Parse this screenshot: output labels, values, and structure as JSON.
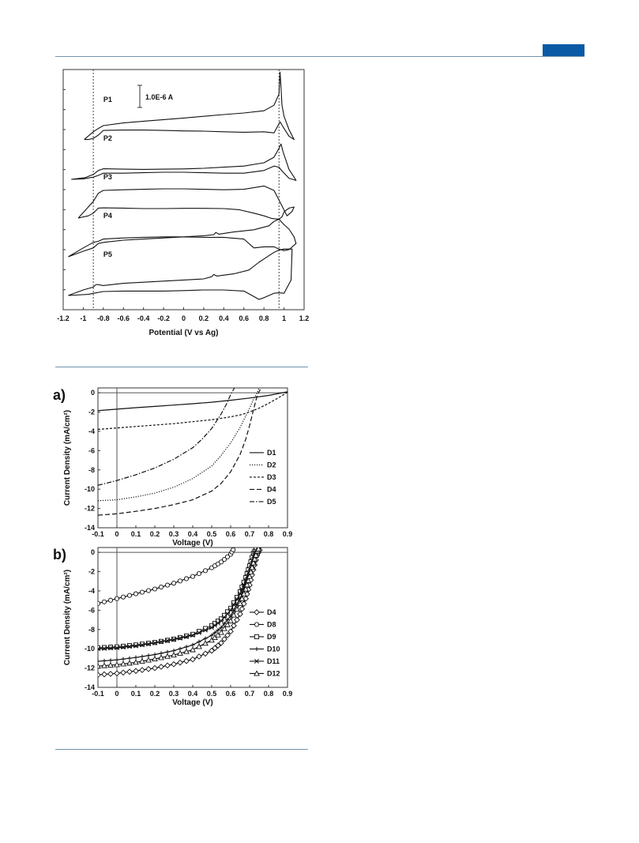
{
  "page": {
    "accent_color": "#0b5aa6",
    "rule_color": "#6f93ad"
  },
  "chart_data": [
    {
      "type": "line",
      "subtype": "cyclic-voltammogram",
      "title": "",
      "xlabel": "Potential (V vs Ag)",
      "ylabel": "",
      "xlim": [
        -1.2,
        1.2
      ],
      "xticks": [
        "-1.2",
        "-1",
        "-0.8",
        "-0.6",
        "-0.4",
        "-0.2",
        "0",
        "0.2",
        "0.4",
        "0.6",
        "0.8",
        "1",
        "1.2"
      ],
      "scale_bar_label": "1.0E-6 A",
      "reference_lines_x": [
        -0.9,
        0.95
      ],
      "grid": false,
      "series": [
        {
          "name": "P1",
          "offset": 4,
          "x": [
            -0.99,
            -0.9,
            -0.85,
            -0.8,
            -0.6,
            -0.4,
            -0.2,
            0,
            0.2,
            0.4,
            0.6,
            0.8,
            0.9,
            0.95,
            0.96,
            0.97,
            0.98,
            1.0,
            1.05,
            1.1,
            1.05,
            1.0,
            0.96,
            0.93,
            0.9,
            0.8,
            0.6,
            0.4,
            0.2,
            0,
            -0.2,
            -0.4,
            -0.6,
            -0.8,
            -0.85,
            -0.9,
            -0.95,
            -0.99
          ],
          "y": [
            0.55,
            0.9,
            1.05,
            1.18,
            1.3,
            1.38,
            1.45,
            1.52,
            1.6,
            1.68,
            1.75,
            1.85,
            2.1,
            2.6,
            3.6,
            2.9,
            2.1,
            1.6,
            1.0,
            0.55,
            0.7,
            1.05,
            1.35,
            1.1,
            0.85,
            0.9,
            0.88,
            0.9,
            0.93,
            0.94,
            0.96,
            0.98,
            0.98,
            0.96,
            0.75,
            0.6,
            0.55,
            0.55
          ]
        },
        {
          "name": "P2",
          "offset": 3,
          "x": [
            -1.12,
            -0.98,
            -0.9,
            -0.85,
            -0.8,
            -0.6,
            -0.4,
            -0.2,
            0,
            0.2,
            0.4,
            0.6,
            0.8,
            0.9,
            0.95,
            0.97,
            0.99,
            1.02,
            1.05,
            1.1,
            1.12,
            1.05,
            0.98,
            0.95,
            0.9,
            0.8,
            0.6,
            0.4,
            0.2,
            0,
            -0.2,
            -0.4,
            -0.6,
            -0.8,
            -0.85,
            -0.9,
            -1.0,
            -1.12
          ],
          "y": [
            0.5,
            0.58,
            0.72,
            0.9,
            0.98,
            0.96,
            0.95,
            0.96,
            0.97,
            1.0,
            1.05,
            1.1,
            1.25,
            1.5,
            1.9,
            2.1,
            1.75,
            1.35,
            0.95,
            0.6,
            0.45,
            0.55,
            0.88,
            1.05,
            1.1,
            0.9,
            0.78,
            0.78,
            0.8,
            0.82,
            0.82,
            0.8,
            0.78,
            0.78,
            0.68,
            0.6,
            0.52,
            0.5
          ]
        },
        {
          "name": "P3",
          "offset": 2,
          "x": [
            -1.05,
            -0.95,
            -0.9,
            -0.85,
            -0.8,
            -0.6,
            -0.4,
            -0.2,
            0,
            0.2,
            0.4,
            0.55,
            0.7,
            0.8,
            0.88,
            0.95,
            0.98,
            1.0,
            1.05,
            1.1,
            1.08,
            1.03,
            0.98,
            0.9,
            0.8,
            0.6,
            0.4,
            0.2,
            0,
            -0.2,
            -0.4,
            -0.6,
            -0.8,
            -0.85,
            -0.9,
            -1.05
          ],
          "y": [
            0.5,
            0.6,
            0.72,
            0.95,
            0.96,
            0.95,
            0.93,
            0.93,
            0.94,
            0.94,
            0.93,
            0.88,
            0.72,
            0.6,
            0.48,
            0.45,
            0.55,
            0.78,
            0.95,
            1.0,
            0.8,
            0.6,
            1.05,
            1.75,
            1.95,
            1.8,
            1.78,
            1.8,
            1.82,
            1.82,
            1.8,
            1.78,
            1.75,
            1.62,
            1.25,
            0.5
          ]
        },
        {
          "name": "P4",
          "offset": 1,
          "x": [
            -1.15,
            -1.0,
            -0.9,
            -0.85,
            -0.8,
            -0.6,
            -0.4,
            -0.2,
            0,
            0.2,
            0.3,
            0.32,
            0.35,
            0.5,
            0.7,
            0.85,
            0.9,
            0.95,
            1.0,
            1.05,
            1.1,
            1.12,
            1.05,
            1.0,
            0.95,
            0.9,
            0.8,
            0.7,
            0.6,
            0.4,
            0.2,
            0,
            -0.2,
            -0.4,
            -0.6,
            -0.8,
            -0.85,
            -0.9,
            -1.0,
            -1.15
          ],
          "y": [
            0.5,
            0.75,
            0.9,
            1.1,
            1.15,
            1.25,
            1.3,
            1.35,
            1.4,
            1.45,
            1.5,
            1.6,
            1.52,
            1.62,
            1.72,
            1.9,
            2.1,
            2.2,
            1.95,
            1.75,
            1.4,
            1.1,
            0.82,
            0.78,
            0.85,
            0.95,
            0.95,
            0.9,
            1.3,
            1.38,
            1.38,
            1.4,
            1.4,
            1.38,
            1.35,
            1.3,
            1.2,
            1.15,
            0.9,
            0.5
          ]
        },
        {
          "name": "P5",
          "offset": 0,
          "x": [
            -1.15,
            -1.0,
            -0.9,
            -0.87,
            -0.8,
            -0.6,
            -0.4,
            -0.2,
            0,
            0.2,
            0.28,
            0.3,
            0.33,
            0.5,
            0.65,
            0.75,
            0.8,
            0.85,
            0.9,
            0.95,
            1.0,
            1.05,
            1.08,
            1.07,
            1.0,
            0.95,
            0.9,
            0.85,
            0.8,
            0.75,
            0.7,
            0.6,
            0.4,
            0.2,
            0,
            -0.2,
            -0.4,
            -0.6,
            -0.8,
            -0.87,
            -0.95,
            -1.15
          ],
          "y": [
            0.5,
            0.75,
            0.88,
            1.0,
            0.95,
            1.05,
            1.1,
            1.15,
            1.2,
            1.25,
            1.35,
            1.45,
            1.38,
            1.48,
            1.65,
            2.0,
            2.15,
            2.3,
            2.45,
            2.55,
            2.6,
            2.6,
            2.6,
            1.2,
            0.6,
            0.62,
            0.6,
            0.5,
            0.4,
            0.32,
            0.45,
            0.7,
            0.75,
            0.75,
            0.72,
            0.7,
            0.7,
            0.7,
            0.68,
            0.62,
            0.55,
            0.5
          ]
        }
      ]
    },
    {
      "type": "line",
      "panel_label": "a)",
      "title": "",
      "xlabel": "Voltage (V)",
      "ylabel": "Current Density (mA/cm²)",
      "xlim": [
        -0.1,
        0.9
      ],
      "ylim": [
        -14,
        0.5
      ],
      "xticks": [
        "-0.1",
        "0",
        "0.1",
        "0.2",
        "0.3",
        "0.4",
        "0.5",
        "0.6",
        "0.7",
        "0.8",
        "0.9"
      ],
      "yticks": [
        "0",
        "-2",
        "-4",
        "-6",
        "-8",
        "-10",
        "-12",
        "-14"
      ],
      "legend_position": "right",
      "grid": false,
      "series": [
        {
          "name": "D1",
          "style": "solid",
          "x": [
            -0.1,
            0,
            0.1,
            0.2,
            0.3,
            0.4,
            0.5,
            0.6,
            0.7,
            0.8,
            0.9
          ],
          "y": [
            -1.85,
            -1.7,
            -1.55,
            -1.42,
            -1.28,
            -1.14,
            -0.98,
            -0.78,
            -0.55,
            -0.28,
            0.1
          ]
        },
        {
          "name": "D2",
          "style": "dotted",
          "x": [
            -0.1,
            0,
            0.1,
            0.2,
            0.3,
            0.4,
            0.5,
            0.55,
            0.6,
            0.65,
            0.7,
            0.72,
            0.74,
            0.75
          ],
          "y": [
            -11.2,
            -11.1,
            -10.8,
            -10.4,
            -9.8,
            -8.9,
            -7.6,
            -6.5,
            -5.2,
            -3.6,
            -1.6,
            -0.7,
            0.0,
            0.5
          ]
        },
        {
          "name": "D3",
          "style": "short-dashed",
          "x": [
            -0.1,
            0,
            0.1,
            0.2,
            0.3,
            0.4,
            0.5,
            0.6,
            0.65,
            0.7,
            0.75,
            0.8,
            0.85,
            0.9
          ],
          "y": [
            -3.8,
            -3.65,
            -3.5,
            -3.35,
            -3.2,
            -3.0,
            -2.8,
            -2.5,
            -2.3,
            -2.0,
            -1.6,
            -1.1,
            -0.55,
            0.05
          ]
        },
        {
          "name": "D4",
          "style": "dashed",
          "x": [
            -0.1,
            0,
            0.1,
            0.2,
            0.3,
            0.4,
            0.5,
            0.55,
            0.6,
            0.65,
            0.68,
            0.7,
            0.72,
            0.74,
            0.76
          ],
          "y": [
            -12.7,
            -12.55,
            -12.3,
            -12.0,
            -11.6,
            -11.1,
            -10.2,
            -9.4,
            -8.2,
            -6.4,
            -4.8,
            -3.4,
            -1.8,
            -0.3,
            0.5
          ]
        },
        {
          "name": "D5",
          "style": "dash-dot",
          "x": [
            -0.1,
            0,
            0.1,
            0.2,
            0.3,
            0.4,
            0.45,
            0.5,
            0.55,
            0.58,
            0.6,
            0.62
          ],
          "y": [
            -9.6,
            -9.1,
            -8.5,
            -7.8,
            -6.9,
            -5.7,
            -4.8,
            -3.7,
            -2.2,
            -1.1,
            -0.2,
            0.5
          ]
        }
      ]
    },
    {
      "type": "line",
      "panel_label": "b)",
      "title": "",
      "xlabel": "Voltage (V)",
      "ylabel": "Current Density (mA/cm²)",
      "xlim": [
        -0.1,
        0.9
      ],
      "ylim": [
        -14,
        0.5
      ],
      "xticks": [
        "-0.1",
        "0",
        "0.1",
        "0.2",
        "0.3",
        "0.4",
        "0.5",
        "0.6",
        "0.7",
        "0.8",
        "0.9"
      ],
      "yticks": [
        "0",
        "-2",
        "-4",
        "-6",
        "-8",
        "-10",
        "-12",
        "-14"
      ],
      "legend_position": "right",
      "grid": false,
      "series": [
        {
          "name": "D4",
          "marker": "diamond",
          "x": [
            -0.1,
            0,
            0.1,
            0.2,
            0.3,
            0.4,
            0.5,
            0.55,
            0.6,
            0.65,
            0.68,
            0.7,
            0.72,
            0.74,
            0.76
          ],
          "y": [
            -12.7,
            -12.55,
            -12.3,
            -12.0,
            -11.6,
            -11.1,
            -10.2,
            -9.4,
            -8.2,
            -6.4,
            -4.8,
            -3.4,
            -1.8,
            -0.3,
            0.5
          ]
        },
        {
          "name": "D8",
          "marker": "circle",
          "x": [
            -0.1,
            0,
            0.1,
            0.2,
            0.3,
            0.4,
            0.5,
            0.55,
            0.6,
            0.62
          ],
          "y": [
            -5.3,
            -4.8,
            -4.3,
            -3.8,
            -3.2,
            -2.5,
            -1.6,
            -1.0,
            -0.2,
            0.5
          ]
        },
        {
          "name": "D9",
          "marker": "square",
          "x": [
            -0.1,
            0,
            0.1,
            0.2,
            0.3,
            0.4,
            0.5,
            0.55,
            0.6,
            0.65,
            0.68,
            0.7,
            0.72,
            0.74
          ],
          "y": [
            -9.9,
            -9.8,
            -9.6,
            -9.35,
            -9.0,
            -8.5,
            -7.6,
            -6.9,
            -5.8,
            -4.1,
            -2.6,
            -1.4,
            -0.1,
            0.5
          ]
        },
        {
          "name": "D10",
          "marker": "plus",
          "x": [
            -0.1,
            0,
            0.1,
            0.2,
            0.3,
            0.4,
            0.5,
            0.55,
            0.6,
            0.65,
            0.68,
            0.7,
            0.72,
            0.74,
            0.75
          ],
          "y": [
            -11.3,
            -11.15,
            -10.9,
            -10.6,
            -10.2,
            -9.6,
            -8.6,
            -7.8,
            -6.6,
            -4.8,
            -3.4,
            -2.2,
            -0.9,
            0.2,
            0.5
          ]
        },
        {
          "name": "D11",
          "marker": "x",
          "x": [
            -0.1,
            0,
            0.1,
            0.2,
            0.3,
            0.4,
            0.5,
            0.55,
            0.6,
            0.65,
            0.68,
            0.7,
            0.72,
            0.74
          ],
          "y": [
            -10.0,
            -9.9,
            -9.7,
            -9.4,
            -9.05,
            -8.6,
            -7.8,
            -7.1,
            -6.0,
            -4.3,
            -2.9,
            -1.7,
            -0.4,
            0.5
          ]
        },
        {
          "name": "D12",
          "marker": "triangle",
          "x": [
            -0.1,
            0,
            0.1,
            0.2,
            0.3,
            0.4,
            0.5,
            0.55,
            0.6,
            0.65,
            0.68,
            0.7,
            0.72,
            0.74,
            0.75
          ],
          "y": [
            -11.8,
            -11.65,
            -11.4,
            -11.05,
            -10.65,
            -10.1,
            -9.1,
            -8.3,
            -7.1,
            -5.3,
            -3.8,
            -2.5,
            -1.1,
            0.1,
            0.5
          ]
        }
      ]
    }
  ]
}
